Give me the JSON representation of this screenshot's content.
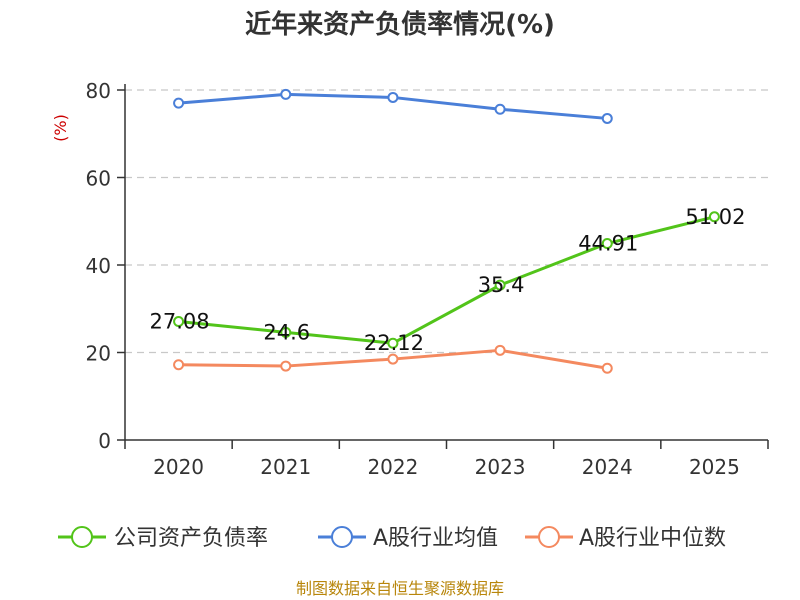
{
  "chart_data": {
    "type": "line",
    "title": "近年来资产负债率情况(%)",
    "ylabel": "(%)",
    "xlabel": "",
    "categories": [
      "2020",
      "2021",
      "2022",
      "2023",
      "2024",
      "2025"
    ],
    "ylim": [
      0,
      80
    ],
    "yticks": [
      0,
      20,
      40,
      60,
      80
    ],
    "grid": true,
    "legend_position": "bottom",
    "series": [
      {
        "name": "公司资产负债率",
        "color": "#52c41a",
        "values": [
          27.08,
          24.6,
          22.12,
          35.4,
          44.91,
          51.02
        ],
        "labels": [
          "27.08",
          "24.6",
          "22.12",
          "35.4",
          "44.91",
          "51.02"
        ]
      },
      {
        "name": "A股行业均值",
        "color": "#4a7fd8",
        "values": [
          77,
          79,
          78.3,
          75.6,
          73.5,
          null
        ]
      },
      {
        "name": "A股行业中位数",
        "color": "#f4895f",
        "values": [
          17.2,
          16.9,
          18.5,
          20.5,
          16.4,
          null
        ]
      }
    ]
  },
  "source": "制图数据来自恒生聚源数据库"
}
